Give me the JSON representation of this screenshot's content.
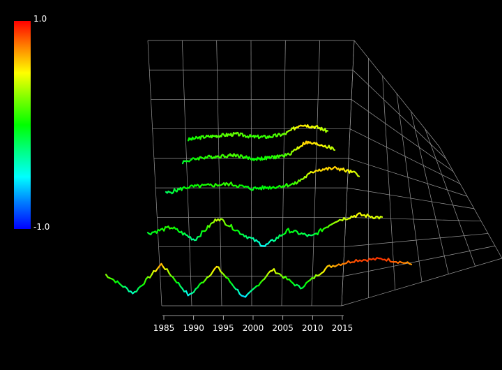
{
  "colorbar": {
    "max_label": "1.0",
    "min_label": "-1.0"
  },
  "chart_data": {
    "type": "line",
    "subtype": "3d-ribbon-series",
    "x_ticks": [
      "1985",
      "1990",
      "1995",
      "2000",
      "2005",
      "2010",
      "2015"
    ],
    "xlim": [
      1983,
      2016
    ],
    "color_scale": {
      "min": -1.0,
      "max": 1.0,
      "colormap": "rainbow (blue → cyan → green → yellow → red)"
    },
    "series": [
      {
        "x": [
          1989,
          1992,
          1995,
          1998,
          2001,
          2004,
          2007,
          2010,
          2013,
          2015
        ],
        "values": [
          0.0,
          0.1,
          0.15,
          0.2,
          0.1,
          0.1,
          0.2,
          0.55,
          0.45,
          0.3
        ]
      },
      {
        "x": [
          1989,
          1992,
          1995,
          1998,
          2001,
          2004,
          2007,
          2010,
          2013,
          2015
        ],
        "values": [
          -0.1,
          0.05,
          0.1,
          0.15,
          0.0,
          0.05,
          0.15,
          0.6,
          0.5,
          0.35
        ]
      },
      {
        "x": [
          1987,
          1990,
          1993,
          1996,
          1999,
          2002,
          2005,
          2008,
          2011,
          2014
        ],
        "values": [
          -0.2,
          0.0,
          0.05,
          0.1,
          -0.05,
          0.0,
          0.1,
          0.55,
          0.6,
          0.4
        ]
      },
      {
        "x": [
          1985,
          1988,
          1991,
          1994,
          1997,
          2000,
          2003,
          2006,
          2009,
          2012,
          2015
        ],
        "values": [
          -0.1,
          0.1,
          -0.3,
          0.4,
          -0.1,
          -0.5,
          0.0,
          -0.2,
          0.3,
          0.5,
          0.4
        ]
      },
      {
        "x": [
          1983,
          1986,
          1989,
          1992,
          1995,
          1998,
          2001,
          2004,
          2007,
          2010,
          2013,
          2016
        ],
        "values": [
          0.3,
          -0.4,
          0.7,
          -0.5,
          0.6,
          -0.6,
          0.5,
          -0.2,
          0.6,
          0.85,
          0.9,
          0.7
        ]
      }
    ],
    "grid": true,
    "legend": "colorbar left"
  }
}
